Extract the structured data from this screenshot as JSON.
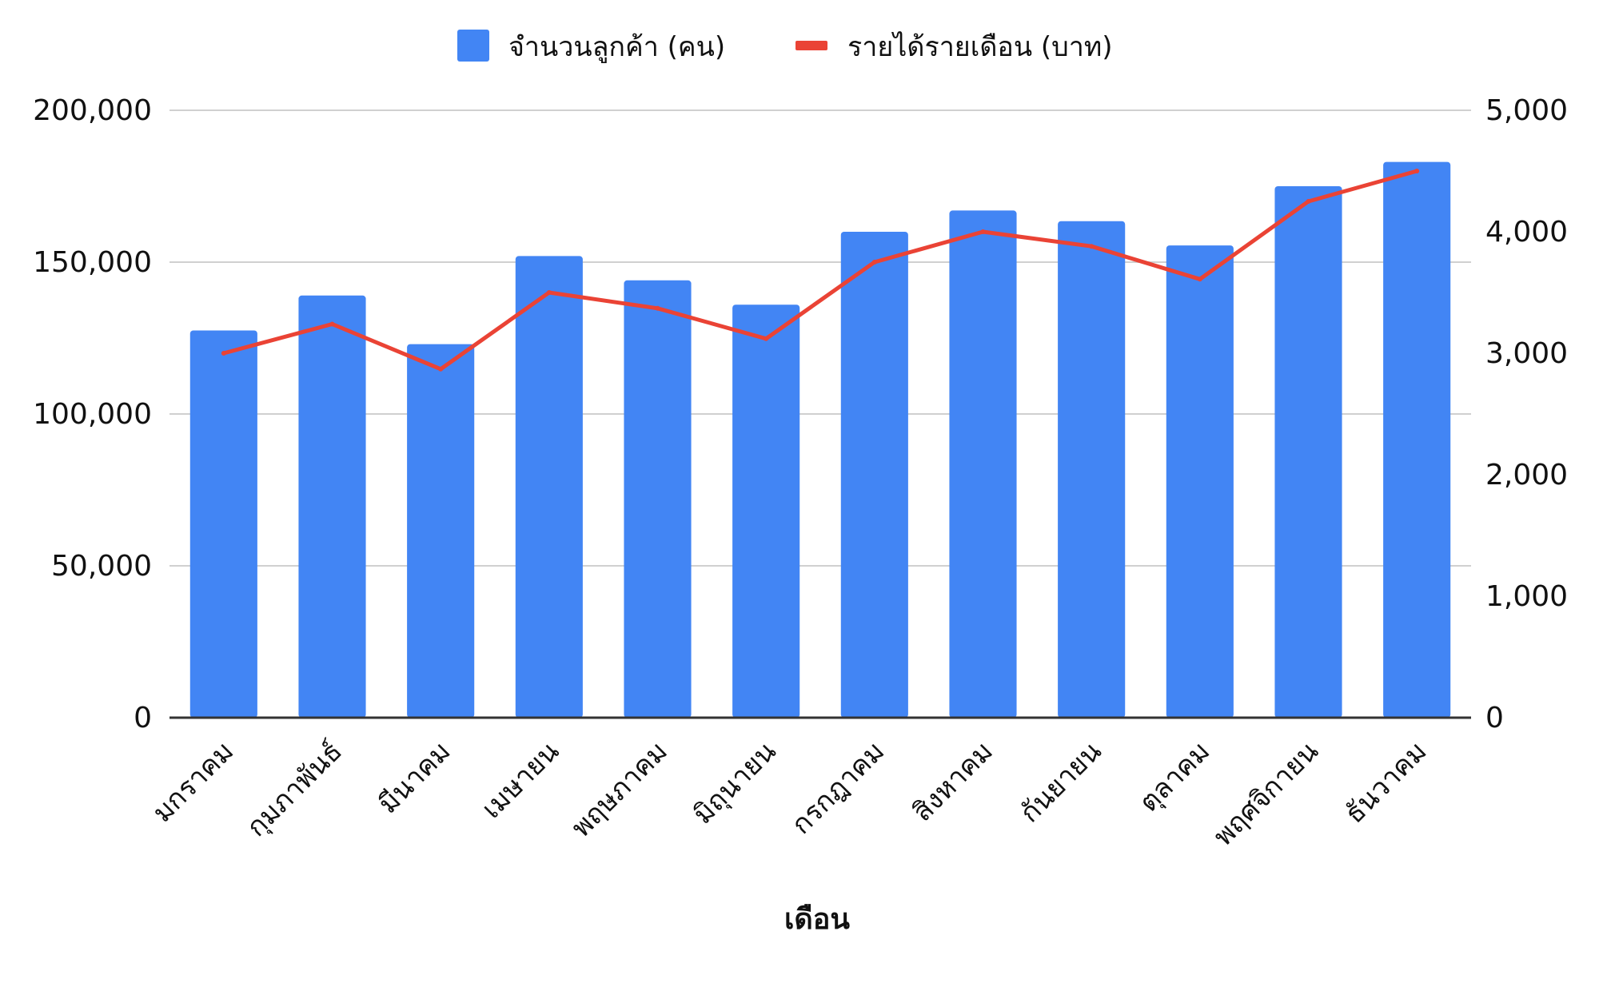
{
  "chart_data": {
    "type": "bar",
    "title": "",
    "xlabel": "เดือน",
    "ylabel": "",
    "y2label": "",
    "categories": [
      "มกราคม",
      "กุมภาพันธ์",
      "มีนาคม",
      "เมษายน",
      "พฤษภาคม",
      "มิถุนายน",
      "กรกฎาคม",
      "สิงหาคม",
      "กันยายน",
      "ตุลาคม",
      "พฤศจิกายน",
      "ธันวาคม"
    ],
    "series": [
      {
        "name": "จำนวนลูกค้า (คน)",
        "type": "bar",
        "axis": "left",
        "color": "#4285F4",
        "values": [
          127500,
          139000,
          123000,
          152000,
          144000,
          136000,
          160000,
          167000,
          163500,
          155500,
          175000,
          183000
        ]
      },
      {
        "name": "รายได้รายเดือน (บาท)",
        "type": "line",
        "axis": "right",
        "color": "#EA4335",
        "values": [
          3000,
          3240,
          2870,
          3500,
          3370,
          3120,
          3750,
          4000,
          3880,
          3610,
          4250,
          4500
        ]
      }
    ],
    "ylim": [
      0,
      200000
    ],
    "y2lim": [
      0,
      5000
    ],
    "yticks": [
      "0",
      "50,000",
      "100,000",
      "150,000",
      "200,000"
    ],
    "y2ticks": [
      "0",
      "1,000",
      "2,000",
      "3,000",
      "4,000",
      "5,000"
    ],
    "grid": true,
    "legend_position": "top",
    "gridline_color": "#d0d0d0",
    "axis_line_color": "#333333"
  }
}
